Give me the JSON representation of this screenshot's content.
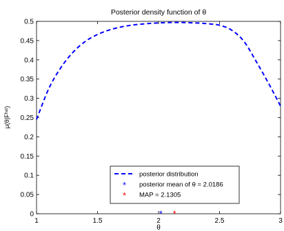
{
  "chart_data": {
    "type": "line",
    "title": "Posterior density function of θ",
    "xlabel": "θ",
    "ylabel": "μ(θ|Fʰᵃᵗ)",
    "xlim": [
      1,
      3
    ],
    "ylim": [
      0,
      0.5
    ],
    "xticks": [
      1,
      1.5,
      2,
      2.5,
      3
    ],
    "xtick_labels": [
      "1",
      "1.5",
      "2",
      "2.5",
      "3"
    ],
    "yticks": [
      0,
      0.05,
      0.1,
      0.15,
      0.2,
      0.25,
      0.3,
      0.35,
      0.4,
      0.45,
      0.5
    ],
    "ytick_labels": [
      "0",
      "0.05",
      "0.1",
      "0.15",
      "0.2",
      "0.25",
      "0.3",
      "0.35",
      "0.4",
      "0.45",
      "0.5"
    ],
    "grid": false,
    "legend_position": "bottom-center",
    "series": [
      {
        "name": "posterior distribution",
        "style": "dashed",
        "color": "#0000ff",
        "x": [
          1.0,
          1.1,
          1.2,
          1.3,
          1.4,
          1.5,
          1.6,
          1.7,
          1.8,
          1.9,
          2.0,
          2.1,
          2.2,
          2.3,
          2.4,
          2.5,
          2.6,
          2.7,
          2.8,
          2.9,
          3.0
        ],
        "y": [
          0.245,
          0.325,
          0.38,
          0.42,
          0.448,
          0.466,
          0.478,
          0.486,
          0.491,
          0.494,
          0.496,
          0.497,
          0.497,
          0.496,
          0.494,
          0.49,
          0.477,
          0.448,
          0.396,
          0.34,
          0.28
        ]
      },
      {
        "name": "posterior mean of θ = 2.0186",
        "marker": "*",
        "color": "#0000ff",
        "x": [
          2.0186
        ],
        "y": [
          0
        ]
      },
      {
        "name": "MAP = 2.1305",
        "marker": "*",
        "color": "#ff0000",
        "x": [
          2.1305
        ],
        "y": [
          0
        ]
      }
    ]
  }
}
